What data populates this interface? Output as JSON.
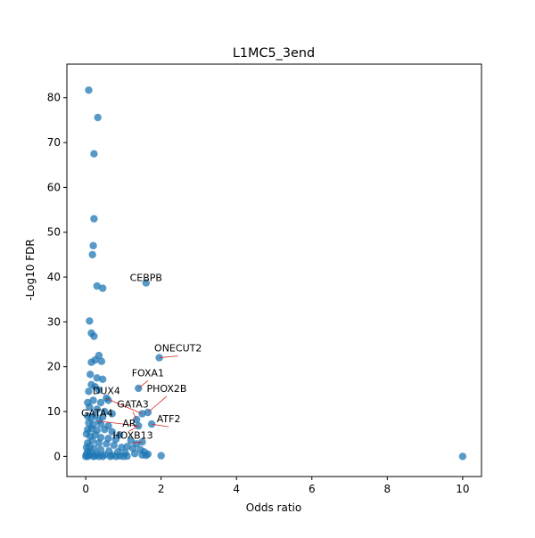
{
  "chart_data": {
    "type": "scatter",
    "title": "L1MC5_3end",
    "xlabel": "Odds ratio",
    "ylabel": "-Log10 FDR",
    "xlim": [
      -0.5,
      10.5
    ],
    "ylim": [
      -4.5,
      87.5
    ],
    "xticks": [
      0,
      2,
      4,
      6,
      8,
      10
    ],
    "yticks": [
      0,
      10,
      20,
      30,
      40,
      50,
      60,
      70,
      80
    ],
    "grid": false,
    "marker_color": "#1f77b4",
    "annotation_line_color": "#d62728",
    "points": [
      [
        0.08,
        81.7
      ],
      [
        0.32,
        75.6
      ],
      [
        0.22,
        67.5
      ],
      [
        0.22,
        53.0
      ],
      [
        0.2,
        47.0
      ],
      [
        0.18,
        45.0
      ],
      [
        0.3,
        38.0
      ],
      [
        0.45,
        37.5
      ],
      [
        1.6,
        38.7
      ],
      [
        0.1,
        30.2
      ],
      [
        0.15,
        27.5
      ],
      [
        0.22,
        26.8
      ],
      [
        1.95,
        22.0
      ],
      [
        0.35,
        22.5
      ],
      [
        0.15,
        21.0
      ],
      [
        0.25,
        21.5
      ],
      [
        0.42,
        21.2
      ],
      [
        0.12,
        18.3
      ],
      [
        0.3,
        17.5
      ],
      [
        0.45,
        17.2
      ],
      [
        0.15,
        16.0
      ],
      [
        0.25,
        15.5
      ],
      [
        0.08,
        14.5
      ],
      [
        0.35,
        14.8
      ],
      [
        1.4,
        15.2
      ],
      [
        0.05,
        12.0
      ],
      [
        0.2,
        12.5
      ],
      [
        0.4,
        12.0
      ],
      [
        0.6,
        12.5
      ],
      [
        0.55,
        13.0
      ],
      [
        0.1,
        11.0
      ],
      [
        0.3,
        10.5
      ],
      [
        0.5,
        10.0
      ],
      [
        0.7,
        9.5
      ],
      [
        1.5,
        9.5
      ],
      [
        1.65,
        9.8
      ],
      [
        0.05,
        9.0
      ],
      [
        0.15,
        8.5
      ],
      [
        0.25,
        9.2
      ],
      [
        0.35,
        8.0
      ],
      [
        0.45,
        8.8
      ],
      [
        1.35,
        8.2
      ],
      [
        0.08,
        7.5
      ],
      [
        0.2,
        7.0
      ],
      [
        0.4,
        7.2
      ],
      [
        0.6,
        6.8
      ],
      [
        1.4,
        6.8
      ],
      [
        1.75,
        7.2
      ],
      [
        0.05,
        6.0
      ],
      [
        0.15,
        6.2
      ],
      [
        0.3,
        5.8
      ],
      [
        0.5,
        6.0
      ],
      [
        0.7,
        5.5
      ],
      [
        0.9,
        4.8
      ],
      [
        0.02,
        5.0
      ],
      [
        0.12,
        4.5
      ],
      [
        0.25,
        4.8
      ],
      [
        0.4,
        4.2
      ],
      [
        0.6,
        4.0
      ],
      [
        0.8,
        3.8
      ],
      [
        1.2,
        3.5
      ],
      [
        1.5,
        3.2
      ],
      [
        1.35,
        2.8
      ],
      [
        1.1,
        2.2
      ],
      [
        0.05,
        3.0
      ],
      [
        0.18,
        3.5
      ],
      [
        0.35,
        3.0
      ],
      [
        0.55,
        2.8
      ],
      [
        0.75,
        2.5
      ],
      [
        0.95,
        2.0
      ],
      [
        1.25,
        1.8
      ],
      [
        1.45,
        1.5
      ],
      [
        1.55,
        1.0
      ],
      [
        1.65,
        0.5
      ],
      [
        0.02,
        2.0
      ],
      [
        0.1,
        2.2
      ],
      [
        0.22,
        1.8
      ],
      [
        0.4,
        1.5
      ],
      [
        0.62,
        1.2
      ],
      [
        0.85,
        1.0
      ],
      [
        1.05,
        0.8
      ],
      [
        1.3,
        0.6
      ],
      [
        0.05,
        1.0
      ],
      [
        0.15,
        0.8
      ],
      [
        0.3,
        0.5
      ],
      [
        0.5,
        0.3
      ],
      [
        0.7,
        0.2
      ],
      [
        0.9,
        0.1
      ],
      [
        1.1,
        0.05
      ],
      [
        0.02,
        0.5
      ],
      [
        0.1,
        0.3
      ],
      [
        0.25,
        0.1
      ],
      [
        0.45,
        0.0
      ],
      [
        0.65,
        0.0
      ],
      [
        0.8,
        0.0
      ],
      [
        1.0,
        0.0
      ],
      [
        0.0,
        0.0
      ],
      [
        0.05,
        0.0
      ],
      [
        0.2,
        0.0
      ],
      [
        0.35,
        0.0
      ],
      [
        2.0,
        0.15
      ],
      [
        10.0,
        0.0
      ],
      [
        1.5,
        0.3
      ],
      [
        1.6,
        0.2
      ]
    ],
    "annotations": [
      {
        "label": "CEBPB",
        "point": [
          1.6,
          38.7
        ],
        "text_at": [
          1.6,
          38.7
        ]
      },
      {
        "label": "ONECUT2",
        "point": [
          1.95,
          22.0
        ],
        "text_at": [
          2.45,
          23.0
        ]
      },
      {
        "label": "FOXA1",
        "point": [
          1.4,
          15.2
        ],
        "text_at": [
          1.65,
          17.5
        ]
      },
      {
        "label": "PHOX2B",
        "point": [
          1.65,
          9.8
        ],
        "text_at": [
          2.15,
          14.0
        ]
      },
      {
        "label": "DUX4",
        "point": [
          1.5,
          9.5
        ],
        "text_at": [
          0.55,
          13.5
        ]
      },
      {
        "label": "GATA3",
        "point": [
          1.35,
          8.2
        ],
        "text_at": [
          1.25,
          10.5
        ]
      },
      {
        "label": "GATA4",
        "point": [
          1.4,
          6.8
        ],
        "text_at": [
          0.3,
          8.5
        ]
      },
      {
        "label": "ATF2",
        "point": [
          1.75,
          7.2
        ],
        "text_at": [
          2.2,
          7.2
        ]
      },
      {
        "label": "AR",
        "point": [
          1.4,
          6.8
        ],
        "text_at": [
          1.15,
          6.2
        ]
      },
      {
        "label": "HOXB13",
        "point": [
          1.5,
          3.2
        ],
        "text_at": [
          1.25,
          3.5
        ]
      }
    ]
  }
}
